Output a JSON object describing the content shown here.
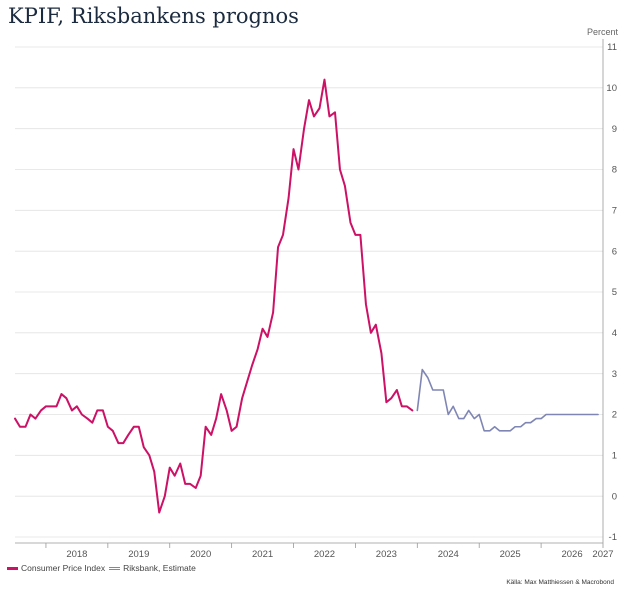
{
  "title": "KPIF, Riksbankens prognos",
  "source": "Källa: Max Matthiessen & Macrobond",
  "colors": {
    "cpi": "#cc1166",
    "estimate": "#7f86b4",
    "grid": "#e2e2e2",
    "axis": "#999999",
    "title": "#1b2a3e"
  },
  "chart_data": {
    "type": "line",
    "ylabel": "Percent",
    "ylim": [
      -1,
      11
    ],
    "yticks": [
      -1,
      0,
      1,
      2,
      3,
      4,
      5,
      6,
      7,
      8,
      9,
      10,
      11
    ],
    "xlim": [
      2017.5,
      2027
    ],
    "xtick_positions": [
      2018.5,
      2019.5,
      2020.5,
      2021.5,
      2022.5,
      2023.5,
      2024.5,
      2025.5,
      2026.5,
      2027
    ],
    "xtick_labels": [
      "2018",
      "2019",
      "2020",
      "2021",
      "2022",
      "2023",
      "2024",
      "2025",
      "2026",
      "2027"
    ],
    "grid": "horizontal",
    "legend_position": "bottom-left",
    "series": [
      {
        "name": "Consumer Price Index",
        "color": "#cc1166",
        "x": [
          2017.5,
          2017.58,
          2017.67,
          2017.75,
          2017.83,
          2017.92,
          2018.0,
          2018.08,
          2018.17,
          2018.25,
          2018.33,
          2018.42,
          2018.5,
          2018.58,
          2018.67,
          2018.75,
          2018.83,
          2018.92,
          2019.0,
          2019.08,
          2019.17,
          2019.25,
          2019.33,
          2019.42,
          2019.5,
          2019.58,
          2019.67,
          2019.75,
          2019.83,
          2019.92,
          2020.0,
          2020.08,
          2020.17,
          2020.25,
          2020.33,
          2020.42,
          2020.5,
          2020.58,
          2020.67,
          2020.75,
          2020.83,
          2020.92,
          2021.0,
          2021.08,
          2021.17,
          2021.25,
          2021.33,
          2021.42,
          2021.5,
          2021.58,
          2021.67,
          2021.75,
          2021.83,
          2021.92,
          2022.0,
          2022.08,
          2022.17,
          2022.25,
          2022.33,
          2022.42,
          2022.5,
          2022.58,
          2022.67,
          2022.75,
          2022.83,
          2022.92,
          2023.0,
          2023.08,
          2023.17,
          2023.25,
          2023.33,
          2023.42,
          2023.5,
          2023.58,
          2023.67,
          2023.75,
          2023.83,
          2023.92
        ],
        "values": [
          1.9,
          1.7,
          1.7,
          2.0,
          1.9,
          2.1,
          2.2,
          2.2,
          2.2,
          2.5,
          2.4,
          2.1,
          2.2,
          2.0,
          1.9,
          1.8,
          2.1,
          2.1,
          1.7,
          1.6,
          1.3,
          1.3,
          1.5,
          1.7,
          1.7,
          1.2,
          1.0,
          0.6,
          -0.4,
          0.0,
          0.7,
          0.5,
          0.8,
          0.3,
          0.3,
          0.2,
          0.5,
          1.7,
          1.5,
          1.9,
          2.5,
          2.1,
          1.6,
          1.7,
          2.4,
          2.8,
          3.2,
          3.6,
          4.1,
          3.9,
          4.5,
          6.1,
          6.4,
          7.3,
          8.5,
          8.0,
          9.0,
          9.7,
          9.3,
          9.5,
          10.2,
          9.3,
          9.4,
          8.0,
          7.6,
          6.7,
          6.4,
          6.4,
          4.7,
          4.0,
          4.2,
          3.5,
          2.3,
          2.4,
          2.6,
          2.2,
          2.2,
          2.1
        ]
      },
      {
        "name": "Riksbank, Estimate",
        "color": "#7f86b4",
        "x": [
          2024.0,
          2024.08,
          2024.17,
          2024.25,
          2024.33,
          2024.42,
          2024.5,
          2024.58,
          2024.67,
          2024.75,
          2024.83,
          2024.92,
          2025.0,
          2025.08,
          2025.17,
          2025.25,
          2025.33,
          2025.42,
          2025.5,
          2025.58,
          2025.67,
          2025.75,
          2025.83,
          2025.92,
          2026.0,
          2026.08,
          2026.17,
          2026.25,
          2026.33,
          2026.42,
          2026.5,
          2026.58,
          2026.67,
          2026.75,
          2026.83,
          2026.92
        ],
        "values": [
          2.1,
          3.1,
          2.9,
          2.6,
          2.6,
          2.6,
          2.0,
          2.2,
          1.9,
          1.9,
          2.1,
          1.9,
          2.0,
          1.6,
          1.6,
          1.7,
          1.6,
          1.6,
          1.6,
          1.7,
          1.7,
          1.8,
          1.8,
          1.9,
          1.9,
          2.0,
          2.0,
          2.0,
          2.0,
          2.0,
          2.0,
          2.0,
          2.0,
          2.0,
          2.0,
          2.0
        ]
      }
    ]
  }
}
